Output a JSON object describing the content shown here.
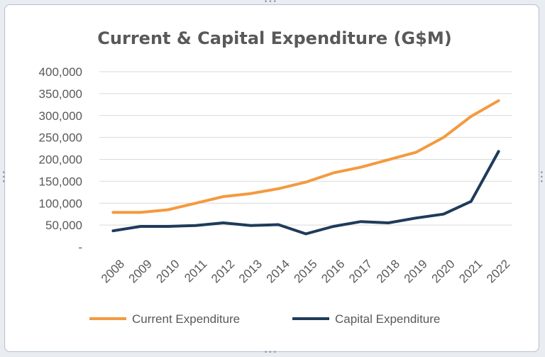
{
  "chart_data": {
    "type": "line",
    "title": "Current & Capital Expenditure (G$M)",
    "xlabel": "",
    "ylabel": "",
    "categories": [
      "2008",
      "2009",
      "2010",
      "2011",
      "2012",
      "2013",
      "2014",
      "2015",
      "2016",
      "2017",
      "2018",
      "2019",
      "2020",
      "2021",
      "2022"
    ],
    "ylim": [
      0,
      400000
    ],
    "yticks": [
      0,
      50000,
      100000,
      150000,
      200000,
      250000,
      300000,
      350000,
      400000
    ],
    "ytick_labels": [
      "-",
      "50,000",
      "100,000",
      "150,000",
      "200,000",
      "250,000",
      "300,000",
      "350,000",
      "400,000"
    ],
    "grid": true,
    "legend_position": "bottom",
    "series": [
      {
        "name": "Current Expenditure",
        "color": "#f39a3f",
        "values": [
          79000,
          79000,
          85000,
          100000,
          115000,
          122000,
          133000,
          148000,
          169000,
          182000,
          199000,
          216000,
          250000,
          298000,
          334000
        ]
      },
      {
        "name": "Capital Expenditure",
        "color": "#1f3b5a",
        "values": [
          37000,
          47000,
          47000,
          49000,
          55000,
          49000,
          51000,
          30000,
          47000,
          58000,
          55000,
          66000,
          75000,
          104000,
          218000
        ]
      }
    ]
  }
}
